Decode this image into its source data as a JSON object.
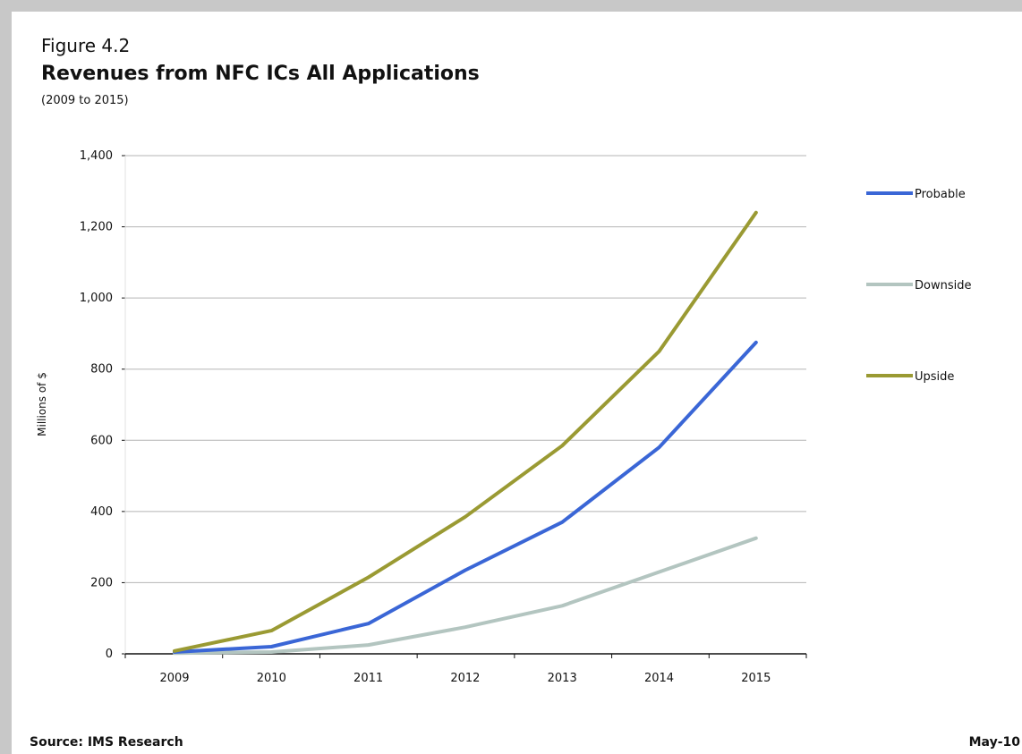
{
  "figure": {
    "label": "Figure 4.2",
    "title": "Revenues from NFC ICs All Applications",
    "subtitle": "(2009 to 2015)",
    "source": "Source: IMS Research",
    "date": "May-10"
  },
  "chart_data": {
    "type": "line",
    "x": [
      "2009",
      "2010",
      "2011",
      "2012",
      "2013",
      "2014",
      "2015"
    ],
    "ylabel": "Millions of $",
    "xlabel": "",
    "ylim": [
      0,
      1400
    ],
    "yticks": [
      0,
      200,
      400,
      600,
      800,
      1000,
      1200,
      1400
    ],
    "ytick_labels": [
      "0",
      "200",
      "400",
      "600",
      "800",
      "1,000",
      "1,200",
      "1,400"
    ],
    "grid": true,
    "legend_position": "right",
    "series": [
      {
        "name": "Probable",
        "color": "#3a66d6",
        "values": [
          5,
          20,
          85,
          235,
          370,
          580,
          875
        ]
      },
      {
        "name": "Downside",
        "color": "#b3c5c0",
        "values": [
          2,
          5,
          25,
          75,
          135,
          230,
          325
        ]
      },
      {
        "name": "Upside",
        "color": "#9a9a33",
        "values": [
          8,
          65,
          215,
          385,
          585,
          850,
          1240
        ]
      }
    ]
  }
}
